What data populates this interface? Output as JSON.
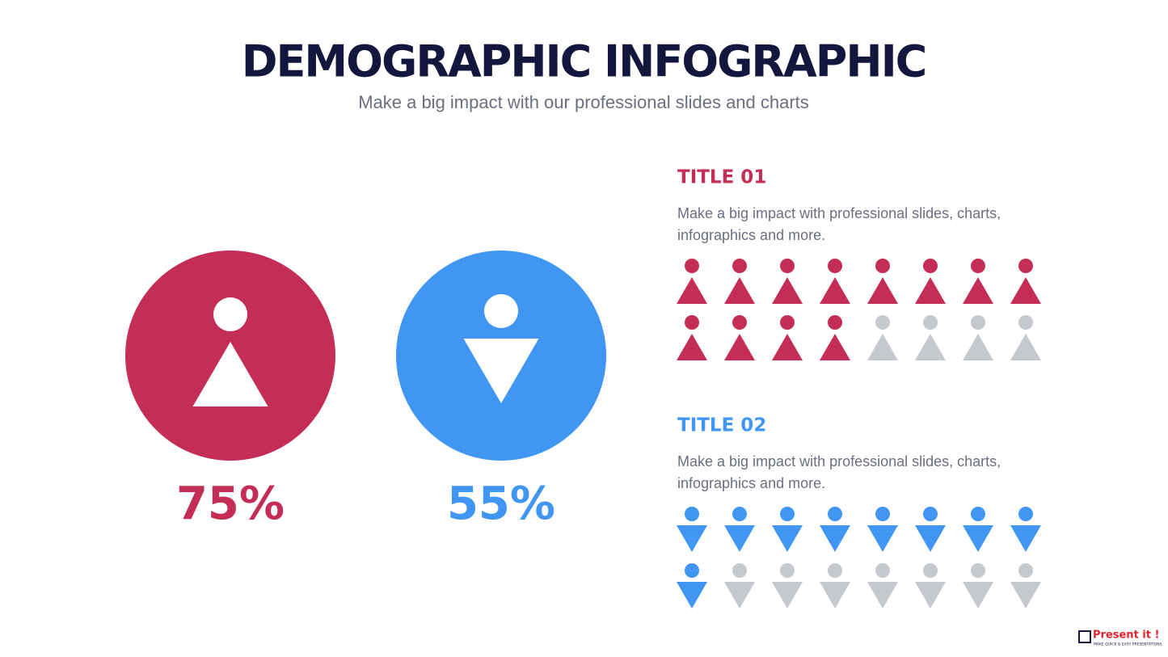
{
  "header": {
    "title": "DEMOGRAPHIC INFOGRAPHIC",
    "subtitle": "Make a big impact with our professional slides and charts"
  },
  "stats": [
    {
      "percent": {
        "value": 75,
        "label": "75%"
      },
      "color": "#c42e56",
      "icon": "up"
    },
    {
      "percent": {
        "value": 55,
        "label": "55%"
      },
      "color": "#4096f2",
      "icon": "down"
    }
  ],
  "panels": [
    {
      "title": "TITLE 01",
      "text": "Make a big impact with professional slides, charts, infographics and more.",
      "filled": 12,
      "total": 16,
      "color": "#c42e56",
      "icon": "up"
    },
    {
      "title": "TITLE 02",
      "text": "Make a big impact with professional slides, charts, infographics and more.",
      "filled": 9,
      "total": 16,
      "color": "#4096f2",
      "icon": "down"
    }
  ],
  "empty_color": "#c5c8cc",
  "logo": {
    "name": "Present it !",
    "tagline": "MAKE QUICK & EASY PRESENTATIONS"
  }
}
